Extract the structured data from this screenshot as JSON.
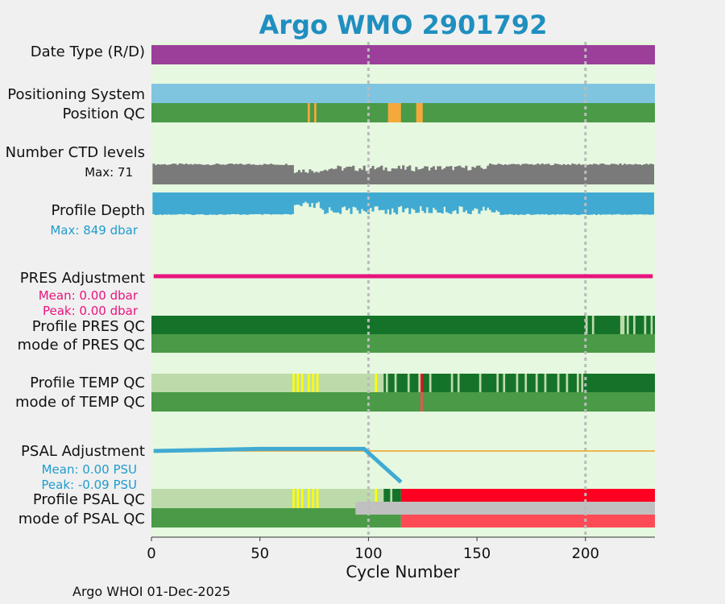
{
  "title": "Argo WMO 2901792",
  "footer": "Argo WHOI 01-Dec-2025",
  "colors": {
    "background_panel": "#e6f8e0",
    "date_type": "#9b3f9a",
    "positioning": "#7fc5e0",
    "qc_good": "#4a9a47",
    "qc_dark": "#157329",
    "qc_light": "#bddbaa",
    "qc_yellow": "#ffff00",
    "qc_orange": "#f5a93c",
    "qc_red": "#ff0022",
    "qc_salmon": "#ff4b55",
    "qc_grey": "#c0c0c0",
    "ctd": "#7a7a7a",
    "depth": "#41aad2",
    "pres_adj": "#e8147d",
    "psal_adj": "#41aad2",
    "psal_ref": "#f0a020",
    "title": "#1f8fbf"
  },
  "labels": {
    "date_type": "Date Type (R/D)",
    "positioning": "Positioning System",
    "position_qc": "Position QC",
    "ctd_levels": "Number CTD levels",
    "ctd_max": "Max: 71",
    "profile_depth": "Profile Depth",
    "depth_max": "Max:  849 dbar",
    "pres_adj": "PRES Adjustment",
    "pres_mean": "Mean: 0.00 dbar",
    "pres_peak": "Peak: 0.00 dbar",
    "profile_pres_qc": "Profile PRES QC",
    "mode_pres_qc": "mode of PRES QC",
    "profile_temp_qc": "Profile TEMP QC",
    "mode_temp_qc": "mode of TEMP QC",
    "psal_adj": "PSAL Adjustment",
    "psal_mean": "Mean: 0.00 PSU",
    "psal_peak": "Peak: -0.09 PSU",
    "profile_psal_qc": "Profile PSAL QC",
    "mode_psal_qc": "mode of PSAL QC"
  },
  "chart_data": {
    "type": "bar",
    "xlabel": "Cycle Number",
    "xlim": [
      0,
      232
    ],
    "xticks": [
      0,
      50,
      100,
      150,
      200
    ],
    "vertical_gridlines": [
      100,
      200
    ],
    "ctd_levels_max": 71,
    "ctd_levels_range": [
      50,
      71
    ],
    "profile_depth_max_dbar": 849,
    "profile_depth_range_dbar": [
      650,
      849
    ],
    "pres_adjustment_dbar": {
      "mean": 0.0,
      "peak": 0.0
    },
    "psal_adjustment_psu": {
      "mean": 0.0,
      "peak": -0.09,
      "display_range": [
        -0.09,
        0.01
      ],
      "points": [
        [
          1,
          0.0
        ],
        [
          25,
          0.001
        ],
        [
          50,
          0.002
        ],
        [
          98,
          0.002
        ],
        [
          115,
          -0.09
        ]
      ]
    },
    "series": [
      {
        "name": "Date Type (R/D)",
        "segments": [
          {
            "from": 0,
            "to": 232,
            "value": "D"
          }
        ]
      },
      {
        "name": "Positioning System",
        "segments": [
          {
            "from": 0,
            "to": 232,
            "value": "GPS"
          }
        ]
      },
      {
        "name": "Position QC",
        "segments": [
          {
            "from": 0,
            "to": 232,
            "qc": "1"
          },
          {
            "from": 72,
            "to": 73,
            "qc": "8"
          },
          {
            "from": 75,
            "to": 76,
            "qc": "8"
          },
          {
            "from": 109,
            "to": 115,
            "qc": "8"
          },
          {
            "from": 122,
            "to": 125,
            "qc": "8"
          }
        ]
      },
      {
        "name": "Profile PRES QC",
        "segments": [
          {
            "from": 0,
            "to": 232,
            "qc": "A"
          },
          {
            "from": 200,
            "to": 201,
            "qc": "B"
          },
          {
            "from": 203,
            "to": 204,
            "qc": "B"
          },
          {
            "from": 216,
            "to": 218,
            "qc": "B"
          },
          {
            "from": 219,
            "to": 220,
            "qc": "B"
          },
          {
            "from": 222,
            "to": 223,
            "qc": "B"
          },
          {
            "from": 227,
            "to": 228,
            "qc": "B"
          },
          {
            "from": 230,
            "to": 231,
            "qc": "B"
          }
        ]
      },
      {
        "name": "mode of PRES QC",
        "segments": [
          {
            "from": 0,
            "to": 232,
            "qc": "1"
          }
        ]
      },
      {
        "name": "Profile TEMP QC",
        "segments": [
          {
            "from": 0,
            "to": 107,
            "qc": "B"
          },
          {
            "from": 65,
            "to": 66,
            "qc": "C"
          },
          {
            "from": 67,
            "to": 68,
            "qc": "C"
          },
          {
            "from": 69,
            "to": 70,
            "qc": "C"
          },
          {
            "from": 72,
            "to": 73,
            "qc": "C"
          },
          {
            "from": 74,
            "to": 75,
            "qc": "C"
          },
          {
            "from": 76,
            "to": 77,
            "qc": "C"
          },
          {
            "from": 103,
            "to": 104,
            "qc": "C"
          },
          {
            "from": 107,
            "to": 232,
            "qc": "A"
          },
          {
            "from": 108,
            "to": 109,
            "qc": "B"
          },
          {
            "from": 112,
            "to": 113,
            "qc": "B"
          },
          {
            "from": 118,
            "to": 119,
            "qc": "B"
          },
          {
            "from": 123,
            "to": 124,
            "qc": "B"
          },
          {
            "from": 124,
            "to": 125,
            "qc": "E"
          },
          {
            "from": 128,
            "to": 129,
            "qc": "B"
          },
          {
            "from": 138,
            "to": 139,
            "qc": "B"
          },
          {
            "from": 141,
            "to": 142,
            "qc": "B"
          },
          {
            "from": 151,
            "to": 152,
            "qc": "B"
          },
          {
            "from": 159,
            "to": 160,
            "qc": "B"
          },
          {
            "from": 162,
            "to": 163,
            "qc": "B"
          },
          {
            "from": 168,
            "to": 169,
            "qc": "B"
          },
          {
            "from": 172,
            "to": 173,
            "qc": "B"
          },
          {
            "from": 177,
            "to": 178,
            "qc": "B"
          },
          {
            "from": 181,
            "to": 182,
            "qc": "B"
          },
          {
            "from": 187,
            "to": 188,
            "qc": "B"
          },
          {
            "from": 191,
            "to": 192,
            "qc": "B"
          },
          {
            "from": 196,
            "to": 197,
            "qc": "B"
          },
          {
            "from": 198,
            "to": 199,
            "qc": "B"
          }
        ]
      },
      {
        "name": "mode of TEMP QC",
        "segments": [
          {
            "from": 0,
            "to": 232,
            "qc": "1"
          },
          {
            "from": 124,
            "to": 125,
            "qc": "4"
          }
        ]
      },
      {
        "name": "Profile PSAL QC",
        "segments": [
          {
            "from": 0,
            "to": 107,
            "qc": "B"
          },
          {
            "from": 65,
            "to": 66,
            "qc": "C"
          },
          {
            "from": 67,
            "to": 68,
            "qc": "C"
          },
          {
            "from": 69,
            "to": 70,
            "qc": "C"
          },
          {
            "from": 72,
            "to": 73,
            "qc": "C"
          },
          {
            "from": 74,
            "to": 75,
            "qc": "C"
          },
          {
            "from": 76,
            "to": 77,
            "qc": "C"
          },
          {
            "from": 103,
            "to": 104,
            "qc": "C"
          },
          {
            "from": 107,
            "to": 115,
            "qc": "A"
          },
          {
            "from": 110,
            "to": 111,
            "qc": "B"
          },
          {
            "from": 115,
            "to": 232,
            "qc": "F"
          }
        ]
      },
      {
        "name": "mode of PSAL QC",
        "segments": [
          {
            "from": 0,
            "to": 115,
            "qc": "1"
          },
          {
            "from": 115,
            "to": 232,
            "qc": "4"
          },
          {
            "from": 94,
            "to": 232,
            "qc": "9"
          }
        ]
      }
    ]
  }
}
